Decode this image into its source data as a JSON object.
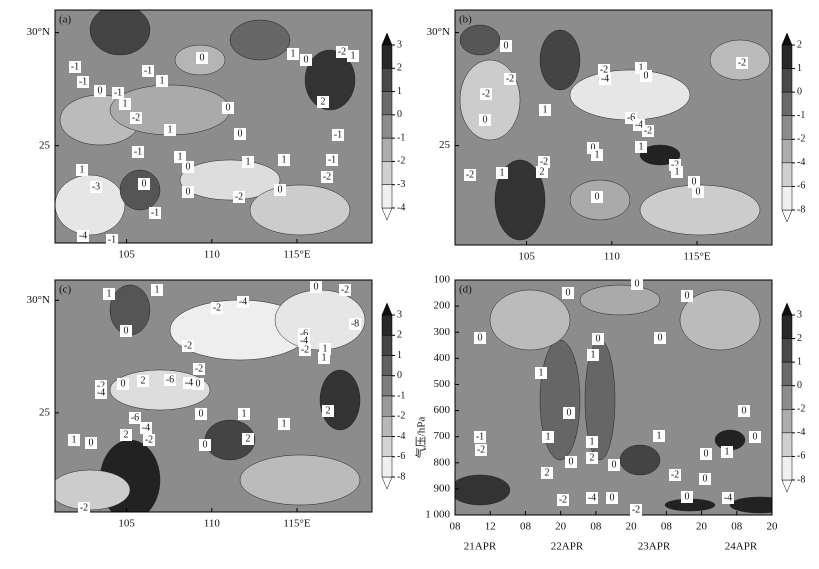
{
  "panels": [
    {
      "label": "(a)",
      "xlim": [
        100.8,
        119.4
      ],
      "ylim": [
        20.7,
        31
      ],
      "xticks": [
        105,
        110,
        {
          "value": 115,
          "label": "115°E"
        }
      ],
      "yticks": [
        {
          "value": 30,
          "label": "30°N"
        },
        25
      ],
      "colorbar": [
        3,
        2,
        1,
        0,
        -1,
        -2,
        -3,
        -4
      ],
      "contour_labels": [
        -1,
        -1,
        0,
        -1,
        -1,
        1,
        0,
        -2,
        1,
        1,
        0,
        0,
        1,
        -1,
        1,
        0,
        1,
        -3,
        0,
        -2,
        0,
        1,
        -1,
        -2,
        -1,
        2,
        1,
        0,
        -2,
        1,
        -1,
        -4,
        -1,
        0
      ]
    },
    {
      "label": "(b)",
      "xlim": [
        100.8,
        119.4
      ],
      "ylim": [
        20.6,
        31
      ],
      "xticks": [
        105,
        110,
        {
          "value": 115,
          "label": "115°E"
        }
      ],
      "yticks": [
        {
          "value": 30,
          "label": "30°N"
        },
        25
      ],
      "colorbar": [
        2,
        1,
        0,
        -1,
        -2,
        -4,
        -6,
        -8
      ],
      "contour_labels": [
        0,
        -2,
        -2,
        0,
        1,
        -2,
        -4,
        1,
        0,
        -2,
        -6,
        -4,
        -2,
        1,
        0,
        1,
        -2,
        2,
        -2,
        1,
        0,
        -2,
        1,
        0,
        0
      ]
    },
    {
      "label": "(c)",
      "xlim": [
        100.8,
        119.4
      ],
      "ylim": [
        20.6,
        30.9
      ],
      "xticks": [
        105,
        110,
        {
          "value": 115,
          "label": "115°E"
        }
      ],
      "yticks": [
        {
          "value": 30,
          "label": "30°N"
        },
        25
      ],
      "colorbar": [
        3,
        2,
        1,
        0,
        -1,
        -2,
        -4,
        -6,
        -8
      ],
      "contour_labels": [
        1,
        1,
        0,
        -2,
        -4,
        0,
        -2,
        -8,
        -6,
        -4,
        -2,
        1,
        1,
        -2,
        -2,
        0,
        -6,
        -4,
        2,
        0,
        -2,
        -4,
        -6,
        -4,
        -2,
        2,
        0,
        1,
        2,
        1,
        2,
        1,
        0,
        -2,
        0
      ]
    },
    {
      "label": "(d)",
      "ylabel": "气压/hPa",
      "xlim": [
        0,
        108
      ],
      "ylim": [
        1000,
        100
      ],
      "xticks": [
        {
          "value": 0,
          "label": "08"
        },
        12,
        {
          "value": 24,
          "label": "08"
        },
        {
          "value": 36,
          "label": "20"
        },
        {
          "value": 48,
          "label": "08"
        },
        {
          "value": 60,
          "label": "20"
        },
        {
          "value": 72,
          "label": "08"
        },
        {
          "value": 84,
          "label": "20"
        },
        {
          "value": 96,
          "label": "08"
        },
        {
          "value": 108,
          "label": "20"
        }
      ],
      "yticks": [
        100,
        200,
        300,
        400,
        500,
        600,
        700,
        800,
        900,
        {
          "value": 1000,
          "label": "1 000"
        }
      ],
      "dates": [
        "21APR",
        "22APR",
        "23APR",
        "24APR"
      ],
      "colorbar": [
        3,
        2,
        1,
        0,
        -2,
        -4,
        -6,
        -8
      ],
      "contour_labels": [
        0,
        0,
        0,
        0,
        0,
        0,
        1,
        1,
        0,
        0,
        1,
        1,
        1,
        -1,
        -2,
        0,
        2,
        0,
        2,
        0,
        -2,
        1,
        0,
        -2,
        -4,
        0,
        -2,
        0,
        -4,
        0
      ]
    }
  ]
}
